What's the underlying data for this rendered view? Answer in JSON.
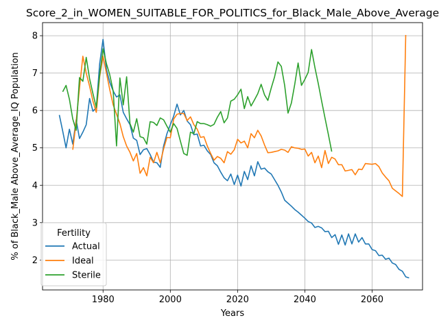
{
  "chart_data": {
    "type": "line",
    "title": "Score_2_in_WOMEN_SUITABLE_FOR_POLITICS_for_Black_Male_Above_Average",
    "xlabel": "Years",
    "ylabel": "% of Black_Male Above_Average_IQ Population",
    "xlim": [
      1962,
      2075
    ],
    "ylim": [
      1.2,
      8.35
    ],
    "xticks": [
      1980,
      2000,
      2020,
      2040,
      2060
    ],
    "yticks": [
      2,
      3,
      4,
      5,
      6,
      7,
      8
    ],
    "grid": true,
    "legend": {
      "title": "Fertility",
      "placement": "lower-left"
    },
    "series": [
      {
        "name": "Actual",
        "color": "#1f77b4",
        "points": [
          [
            1967,
            5.88
          ],
          [
            1968,
            5.45
          ],
          [
            1969,
            5.0
          ],
          [
            1970,
            5.5
          ],
          [
            1971,
            5.1
          ],
          [
            1972,
            5.75
          ],
          [
            1973,
            5.25
          ],
          [
            1974,
            5.42
          ],
          [
            1975,
            5.62
          ],
          [
            1976,
            6.32
          ],
          [
            1977,
            5.98
          ],
          [
            1978,
            6.08
          ],
          [
            1979,
            7.25
          ],
          [
            1980,
            7.9
          ],
          [
            1981,
            7.1
          ],
          [
            1982,
            6.75
          ],
          [
            1983,
            6.52
          ],
          [
            1984,
            6.36
          ],
          [
            1985,
            6.42
          ],
          [
            1986,
            5.95
          ],
          [
            1987,
            5.78
          ],
          [
            1988,
            5.62
          ],
          [
            1989,
            5.26
          ],
          [
            1990,
            5.2
          ],
          [
            1991,
            4.82
          ],
          [
            1992,
            4.95
          ],
          [
            1993,
            4.98
          ],
          [
            1994,
            4.82
          ],
          [
            1995,
            4.62
          ],
          [
            1996,
            4.6
          ],
          [
            1997,
            4.48
          ],
          [
            1998,
            5.05
          ],
          [
            1999,
            5.38
          ],
          [
            2000,
            5.62
          ],
          [
            2001,
            5.85
          ],
          [
            2002,
            6.17
          ],
          [
            2003,
            5.88
          ],
          [
            2004,
            6.0
          ],
          [
            2005,
            5.72
          ],
          [
            2006,
            5.62
          ],
          [
            2007,
            5.35
          ],
          [
            2008,
            5.37
          ],
          [
            2009,
            5.05
          ],
          [
            2010,
            5.07
          ],
          [
            2011,
            4.92
          ],
          [
            2012,
            4.82
          ],
          [
            2013,
            4.6
          ],
          [
            2014,
            4.52
          ],
          [
            2015,
            4.35
          ],
          [
            2016,
            4.2
          ],
          [
            2017,
            4.12
          ],
          [
            2018,
            4.3
          ],
          [
            2019,
            4.02
          ],
          [
            2020,
            4.27
          ],
          [
            2021,
            3.98
          ],
          [
            2022,
            4.37
          ],
          [
            2023,
            4.15
          ],
          [
            2024,
            4.52
          ],
          [
            2025,
            4.25
          ],
          [
            2026,
            4.63
          ],
          [
            2027,
            4.43
          ],
          [
            2028,
            4.46
          ],
          [
            2029,
            4.36
          ],
          [
            2030,
            4.3
          ],
          [
            2031,
            4.15
          ],
          [
            2032,
            4.0
          ],
          [
            2033,
            3.82
          ],
          [
            2034,
            3.6
          ],
          [
            2035,
            3.52
          ],
          [
            2036,
            3.44
          ],
          [
            2037,
            3.35
          ],
          [
            2038,
            3.28
          ],
          [
            2039,
            3.2
          ],
          [
            2040,
            3.12
          ],
          [
            2041,
            3.03
          ],
          [
            2042,
            2.99
          ],
          [
            2043,
            2.87
          ],
          [
            2044,
            2.9
          ],
          [
            2045,
            2.86
          ],
          [
            2046,
            2.76
          ],
          [
            2047,
            2.77
          ],
          [
            2048,
            2.6
          ],
          [
            2049,
            2.68
          ],
          [
            2050,
            2.42
          ],
          [
            2051,
            2.67
          ],
          [
            2052,
            2.4
          ],
          [
            2053,
            2.7
          ],
          [
            2054,
            2.43
          ],
          [
            2055,
            2.7
          ],
          [
            2056,
            2.48
          ],
          [
            2057,
            2.6
          ],
          [
            2058,
            2.43
          ],
          [
            2059,
            2.43
          ],
          [
            2060,
            2.28
          ],
          [
            2061,
            2.25
          ],
          [
            2062,
            2.12
          ],
          [
            2063,
            2.13
          ],
          [
            2064,
            2.02
          ],
          [
            2065,
            2.05
          ],
          [
            2066,
            1.92
          ],
          [
            2067,
            1.88
          ],
          [
            2068,
            1.75
          ],
          [
            2069,
            1.7
          ],
          [
            2070,
            1.55
          ],
          [
            2071,
            1.52
          ]
        ]
      },
      {
        "name": "Ideal",
        "color": "#ff7f0e",
        "points": [
          [
            1971,
            4.95
          ],
          [
            1972,
            5.7
          ],
          [
            1973,
            6.6
          ],
          [
            1974,
            7.45
          ],
          [
            1975,
            7.0
          ],
          [
            1976,
            6.65
          ],
          [
            1977,
            6.25
          ],
          [
            1978,
            5.95
          ],
          [
            1979,
            6.9
          ],
          [
            1980,
            7.45
          ],
          [
            1981,
            7.0
          ],
          [
            1982,
            6.55
          ],
          [
            1983,
            6.15
          ],
          [
            1984,
            5.9
          ],
          [
            1985,
            5.65
          ],
          [
            1986,
            5.3
          ],
          [
            1987,
            5.05
          ],
          [
            1988,
            4.88
          ],
          [
            1989,
            4.65
          ],
          [
            1990,
            4.85
          ],
          [
            1991,
            4.32
          ],
          [
            1992,
            4.47
          ],
          [
            1993,
            4.25
          ],
          [
            1994,
            4.75
          ],
          [
            1995,
            4.6
          ],
          [
            1996,
            4.88
          ],
          [
            1997,
            4.6
          ],
          [
            1998,
            4.97
          ],
          [
            1999,
            5.28
          ],
          [
            2000,
            5.27
          ],
          [
            2001,
            5.77
          ],
          [
            2002,
            5.9
          ],
          [
            2003,
            5.92
          ],
          [
            2004,
            5.92
          ],
          [
            2005,
            5.73
          ],
          [
            2006,
            5.83
          ],
          [
            2007,
            5.62
          ],
          [
            2008,
            5.5
          ],
          [
            2009,
            5.28
          ],
          [
            2010,
            5.3
          ],
          [
            2011,
            5.05
          ],
          [
            2012,
            4.85
          ],
          [
            2013,
            4.67
          ],
          [
            2014,
            4.77
          ],
          [
            2015,
            4.72
          ],
          [
            2016,
            4.6
          ],
          [
            2017,
            4.9
          ],
          [
            2018,
            4.83
          ],
          [
            2019,
            4.95
          ],
          [
            2020,
            5.23
          ],
          [
            2021,
            5.13
          ],
          [
            2022,
            5.18
          ],
          [
            2023,
            5.0
          ],
          [
            2024,
            5.38
          ],
          [
            2025,
            5.27
          ],
          [
            2026,
            5.47
          ],
          [
            2027,
            5.32
          ],
          [
            2028,
            5.08
          ],
          [
            2029,
            4.87
          ],
          [
            2030,
            4.88
          ],
          [
            2031,
            4.9
          ],
          [
            2032,
            4.92
          ],
          [
            2033,
            4.96
          ],
          [
            2034,
            4.94
          ],
          [
            2035,
            4.88
          ],
          [
            2036,
            5.03
          ],
          [
            2037,
            5.0
          ],
          [
            2038,
            4.99
          ],
          [
            2039,
            4.96
          ],
          [
            2040,
            4.97
          ],
          [
            2041,
            4.78
          ],
          [
            2042,
            4.88
          ],
          [
            2043,
            4.6
          ],
          [
            2044,
            4.78
          ],
          [
            2045,
            4.47
          ],
          [
            2046,
            4.93
          ],
          [
            2047,
            4.58
          ],
          [
            2048,
            4.75
          ],
          [
            2049,
            4.7
          ],
          [
            2050,
            4.55
          ],
          [
            2051,
            4.55
          ],
          [
            2052,
            4.38
          ],
          [
            2053,
            4.4
          ],
          [
            2054,
            4.42
          ],
          [
            2055,
            4.28
          ],
          [
            2056,
            4.43
          ],
          [
            2057,
            4.42
          ],
          [
            2058,
            4.58
          ],
          [
            2059,
            4.57
          ],
          [
            2060,
            4.56
          ],
          [
            2061,
            4.58
          ],
          [
            2062,
            4.5
          ],
          [
            2063,
            4.33
          ],
          [
            2064,
            4.22
          ],
          [
            2065,
            4.12
          ],
          [
            2066,
            3.92
          ],
          [
            2067,
            3.85
          ],
          [
            2068,
            3.78
          ],
          [
            2069,
            3.7
          ],
          [
            2070,
            8.02
          ]
        ]
      },
      {
        "name": "Sterile",
        "color": "#2ca02c",
        "points": [
          [
            1968,
            6.5
          ],
          [
            1969,
            6.67
          ],
          [
            1970,
            6.3
          ],
          [
            1971,
            5.77
          ],
          [
            1972,
            5.47
          ],
          [
            1973,
            6.88
          ],
          [
            1974,
            6.78
          ],
          [
            1975,
            7.42
          ],
          [
            1976,
            6.85
          ],
          [
            1977,
            6.45
          ],
          [
            1978,
            6.08
          ],
          [
            1979,
            6.95
          ],
          [
            1980,
            7.65
          ],
          [
            1981,
            7.25
          ],
          [
            1982,
            6.95
          ],
          [
            1983,
            6.52
          ],
          [
            1984,
            5.05
          ],
          [
            1985,
            6.87
          ],
          [
            1986,
            6.15
          ],
          [
            1987,
            6.9
          ],
          [
            1988,
            5.65
          ],
          [
            1989,
            5.42
          ],
          [
            1990,
            5.78
          ],
          [
            1991,
            5.3
          ],
          [
            1992,
            5.27
          ],
          [
            1993,
            5.1
          ],
          [
            1994,
            5.7
          ],
          [
            1995,
            5.68
          ],
          [
            1996,
            5.6
          ],
          [
            1997,
            5.8
          ],
          [
            1998,
            5.75
          ],
          [
            1999,
            5.58
          ],
          [
            2000,
            5.42
          ],
          [
            2001,
            5.65
          ],
          [
            2002,
            5.52
          ],
          [
            2003,
            5.18
          ],
          [
            2004,
            4.85
          ],
          [
            2005,
            4.8
          ],
          [
            2006,
            5.42
          ],
          [
            2007,
            5.38
          ],
          [
            2008,
            5.7
          ],
          [
            2009,
            5.65
          ],
          [
            2010,
            5.65
          ],
          [
            2011,
            5.62
          ],
          [
            2012,
            5.58
          ],
          [
            2013,
            5.63
          ],
          [
            2014,
            5.82
          ],
          [
            2015,
            5.97
          ],
          [
            2016,
            5.67
          ],
          [
            2017,
            5.8
          ],
          [
            2018,
            6.25
          ],
          [
            2019,
            6.3
          ],
          [
            2020,
            6.42
          ],
          [
            2021,
            6.57
          ],
          [
            2022,
            6.05
          ],
          [
            2023,
            6.37
          ],
          [
            2024,
            6.12
          ],
          [
            2025,
            6.28
          ],
          [
            2026,
            6.45
          ],
          [
            2027,
            6.7
          ],
          [
            2028,
            6.42
          ],
          [
            2029,
            6.27
          ],
          [
            2030,
            6.6
          ],
          [
            2031,
            6.9
          ],
          [
            2032,
            7.3
          ],
          [
            2033,
            7.18
          ],
          [
            2034,
            6.67
          ],
          [
            2035,
            5.93
          ],
          [
            2036,
            6.2
          ],
          [
            2037,
            6.7
          ],
          [
            2038,
            7.27
          ],
          [
            2039,
            6.67
          ],
          [
            2040,
            6.83
          ],
          [
            2041,
            7.02
          ],
          [
            2042,
            7.63
          ],
          [
            2043,
            7.15
          ],
          [
            2044,
            6.72
          ],
          [
            2045,
            6.25
          ],
          [
            2046,
            5.8
          ],
          [
            2047,
            5.36
          ],
          [
            2048,
            4.9
          ]
        ]
      }
    ]
  }
}
